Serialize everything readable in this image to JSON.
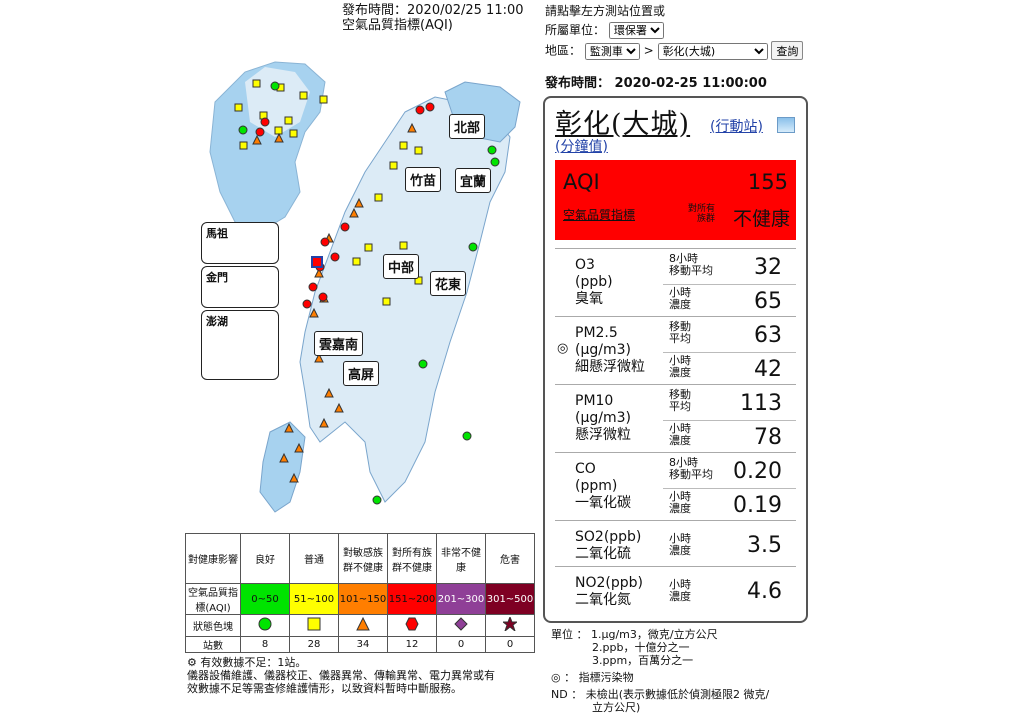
{
  "header": {
    "publish_time": "發布時間：2020/02/25 11:00",
    "subtitle": "空氣品質指標(AQI)"
  },
  "controls": {
    "hint": "請點擊左方測站位置或",
    "unit_label": "所屬單位：",
    "unit_value": "環保署",
    "region_label": "地區：",
    "region_value": "監測車",
    "arrow": ">",
    "station_value": "彰化(大城)",
    "query_label": "查詢",
    "publish_time": "發布時間： 2020-02-25 11:00:00"
  },
  "map": {
    "regions": [
      "北部",
      "竹苗",
      "宜蘭",
      "中部",
      "花東",
      "雲嘉南",
      "高屏"
    ],
    "insets": [
      "馬祖",
      "金門",
      "澎湖"
    ]
  },
  "card": {
    "station": "彰化(大城)",
    "mobile_link": "(行動站)",
    "minute_link": "(分鐘值)",
    "aqi_key": "AQI",
    "aqi_value": "155",
    "aqi_label": "空氣品質指標",
    "sensitive": "對所有族群",
    "status": "不健康",
    "color": "#ff0000",
    "pollutants": [
      {
        "name": "O3",
        "unit": "(ppb)",
        "cname": "臭氧",
        "r1_label": "8小時\n移動平均",
        "r1": "32",
        "r2_label": "小時\n濃度",
        "r2": "65"
      },
      {
        "name": "PM2.5",
        "unit": "(μg/m3)",
        "cname": "細懸浮微粒",
        "r1_label": "移動\n平均",
        "r1": "63",
        "r2_label": "小時\n濃度",
        "r2": "42",
        "primary": "◎"
      },
      {
        "name": "PM10",
        "unit": "(μg/m3)",
        "cname": "懸浮微粒",
        "r1_label": "移動\n平均",
        "r1": "113",
        "r2_label": "小時\n濃度",
        "r2": "78"
      },
      {
        "name": "CO",
        "unit": "(ppm)",
        "cname": "一氧化碳",
        "r1_label": "8小時\n移動平均",
        "r1": "0.20",
        "r2_label": "小時\n濃度",
        "r2": "0.19"
      },
      {
        "name": "SO2(ppb)",
        "cname": "二氧化硫",
        "r1_label": "小時\n濃度",
        "r1": "3.5"
      },
      {
        "name": "NO2(ppb)",
        "cname": "二氧化氮",
        "r1_label": "小時\n濃度",
        "r1": "4.6"
      }
    ]
  },
  "legend": {
    "header": "對健康影響",
    "row_aqi": "空氣品質指標(AQI)",
    "row_shape": "狀態色塊",
    "row_count": "站數",
    "levels": [
      {
        "name": "良好",
        "range": "0~50",
        "color": "#00e400",
        "count": "8"
      },
      {
        "name": "普通",
        "range": "51~100",
        "color": "#ffff00",
        "count": "28"
      },
      {
        "name": "對敏感族群不健康",
        "range": "101~150",
        "color": "#ff7e00",
        "count": "34"
      },
      {
        "name": "對所有族群不健康",
        "range": "151~200",
        "color": "#ff0000",
        "count": "12"
      },
      {
        "name": "非常不健康",
        "range": "201~300",
        "color": "#8f3f97",
        "count": "0"
      },
      {
        "name": "危害",
        "range": "301~500",
        "color": "#7e0023",
        "count": "0"
      }
    ]
  },
  "notes": {
    "line1": "⚙ 有效數據不足：1站。",
    "line2": "儀器設備維護、儀器校正、儀器異常、傳輸異常、電力異常或有",
    "line3": "效數據不足等需查修維護情形，以致資料暫時中斷服務。"
  },
  "units": {
    "l1": "單位 ： 1.μg/m3，微克/立方公尺",
    "l2": "2.ppb，十億分之一",
    "l3": "3.ppm，百萬分之一",
    "l4": "◎   ： 指標污染物",
    "l5": "ND  ： 未檢出(表示數據低於偵測極限2 微克/",
    "l6": "立方公尺)"
  }
}
